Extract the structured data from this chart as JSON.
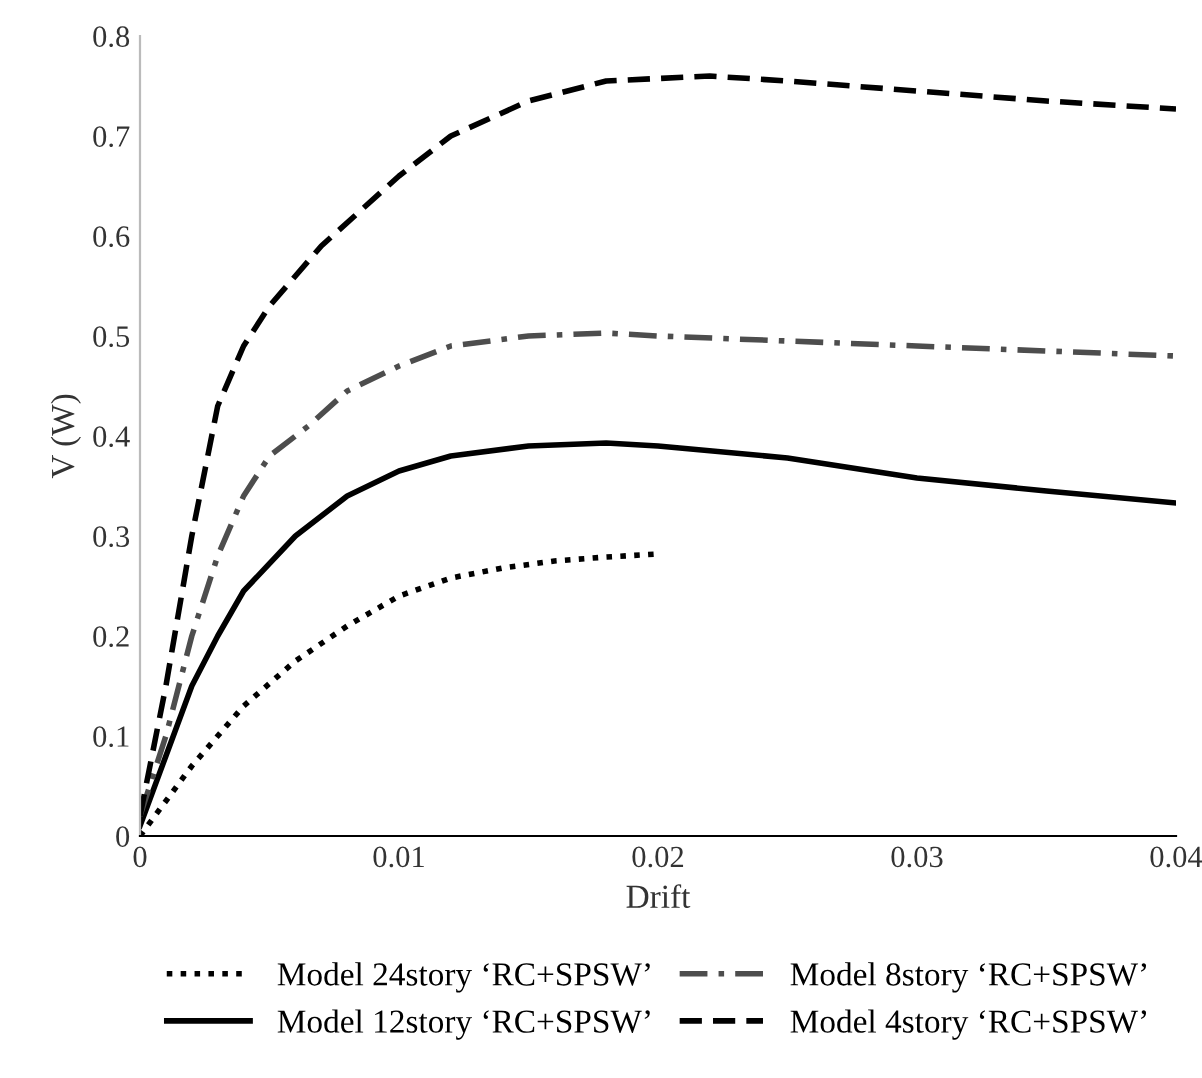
{
  "chart_data": {
    "type": "line",
    "xlabel": "Drift",
    "ylabel": "V (W)",
    "xlim": [
      0,
      0.04
    ],
    "xticks": [
      0,
      0.01,
      0.02,
      0.03,
      0.04
    ],
    "ylim": [
      0,
      0.8
    ],
    "yticks": [
      0,
      0.1,
      0.2,
      0.3,
      0.4,
      0.5,
      0.6,
      0.7,
      0.8
    ],
    "grid": false,
    "legend": "bottom",
    "marker": "none",
    "series": [
      {
        "name": "Model 24story ‘RC+SPSW’",
        "color": "#000000",
        "line_style": "dotted",
        "x": [
          0,
          0.002,
          0.004,
          0.006,
          0.008,
          0.01,
          0.012,
          0.014,
          0.016,
          0.018,
          0.02
        ],
        "values": [
          0,
          0.07,
          0.13,
          0.175,
          0.21,
          0.24,
          0.258,
          0.268,
          0.275,
          0.279,
          0.282
        ]
      },
      {
        "name": "Model 12story ‘RC+SPSW’",
        "color": "#000000",
        "line_style": "solid",
        "x": [
          0,
          0.001,
          0.002,
          0.003,
          0.004,
          0.006,
          0.008,
          0.01,
          0.012,
          0.015,
          0.018,
          0.02,
          0.025,
          0.03,
          0.035,
          0.04
        ],
        "values": [
          0.01,
          0.08,
          0.15,
          0.2,
          0.245,
          0.3,
          0.34,
          0.365,
          0.38,
          0.39,
          0.393,
          0.39,
          0.378,
          0.358,
          0.345,
          0.333
        ]
      },
      {
        "name": "Model 8story ‘RC+SPSW’",
        "color": "#4d4d4d",
        "line_style": "dashdot",
        "x": [
          0,
          0.001,
          0.002,
          0.003,
          0.004,
          0.005,
          0.0065,
          0.008,
          0.01,
          0.012,
          0.015,
          0.018,
          0.02,
          0.025,
          0.03,
          0.035,
          0.04
        ],
        "values": [
          0.02,
          0.1,
          0.2,
          0.28,
          0.34,
          0.38,
          0.41,
          0.445,
          0.47,
          0.49,
          0.5,
          0.503,
          0.5,
          0.495,
          0.49,
          0.485,
          0.48
        ]
      },
      {
        "name": "Model 4story ‘RC+SPSW’",
        "color": "#000000",
        "line_style": "dashed",
        "x": [
          0,
          0.001,
          0.002,
          0.003,
          0.004,
          0.005,
          0.007,
          0.01,
          0.012,
          0.015,
          0.018,
          0.022,
          0.025,
          0.03,
          0.035,
          0.04
        ],
        "values": [
          0.02,
          0.15,
          0.3,
          0.43,
          0.49,
          0.53,
          0.59,
          0.66,
          0.7,
          0.735,
          0.755,
          0.76,
          0.755,
          0.745,
          0.735,
          0.727
        ]
      }
    ]
  }
}
